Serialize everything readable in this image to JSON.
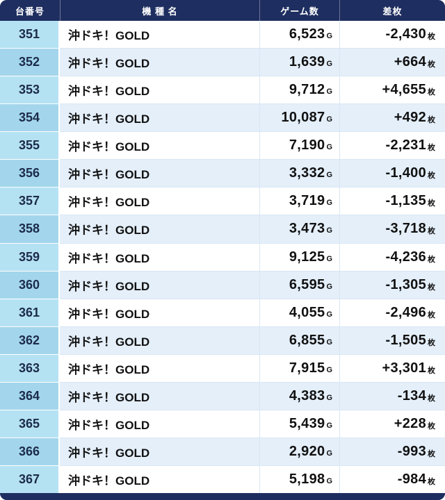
{
  "chart_data": {
    "type": "table",
    "columns": [
      "台番号",
      "機 種 名",
      "ゲーム数",
      "差枚"
    ],
    "game_suffix": "G",
    "diff_suffix": "枚",
    "rows": [
      {
        "no": "351",
        "model": "沖ドキ！GOLD",
        "games": "6,523",
        "diff": "-2,430"
      },
      {
        "no": "352",
        "model": "沖ドキ！GOLD",
        "games": "1,639",
        "diff": "+664"
      },
      {
        "no": "353",
        "model": "沖ドキ！GOLD",
        "games": "9,712",
        "diff": "+4,655"
      },
      {
        "no": "354",
        "model": "沖ドキ！GOLD",
        "games": "10,087",
        "diff": "+492"
      },
      {
        "no": "355",
        "model": "沖ドキ！GOLD",
        "games": "7,190",
        "diff": "-2,231"
      },
      {
        "no": "356",
        "model": "沖ドキ！GOLD",
        "games": "3,332",
        "diff": "-1,400"
      },
      {
        "no": "357",
        "model": "沖ドキ！GOLD",
        "games": "3,719",
        "diff": "-1,135"
      },
      {
        "no": "358",
        "model": "沖ドキ！GOLD",
        "games": "3,473",
        "diff": "-3,718"
      },
      {
        "no": "359",
        "model": "沖ドキ！GOLD",
        "games": "9,125",
        "diff": "-4,236"
      },
      {
        "no": "360",
        "model": "沖ドキ！GOLD",
        "games": "6,595",
        "diff": "-1,305"
      },
      {
        "no": "361",
        "model": "沖ドキ！GOLD",
        "games": "4,055",
        "diff": "-2,496"
      },
      {
        "no": "362",
        "model": "沖ドキ！GOLD",
        "games": "6,855",
        "diff": "-1,505"
      },
      {
        "no": "363",
        "model": "沖ドキ！GOLD",
        "games": "7,915",
        "diff": "+3,301"
      },
      {
        "no": "364",
        "model": "沖ドキ！GOLD",
        "games": "4,383",
        "diff": "-134"
      },
      {
        "no": "365",
        "model": "沖ドキ！GOLD",
        "games": "5,439",
        "diff": "+228"
      },
      {
        "no": "366",
        "model": "沖ドキ！GOLD",
        "games": "2,920",
        "diff": "-993"
      },
      {
        "no": "367",
        "model": "沖ドキ！GOLD",
        "games": "5,198",
        "diff": "-984"
      }
    ]
  },
  "colors": {
    "header_bg": "#1e2e60",
    "number_col_bg": "#b5e2f3",
    "number_col_alt_bg": "#a3d6ec",
    "row_bg": "#ffffff",
    "row_alt_bg": "#e4effa",
    "frame": "#1e2e60",
    "text": "#111111",
    "header_text": "#ffffff"
  }
}
